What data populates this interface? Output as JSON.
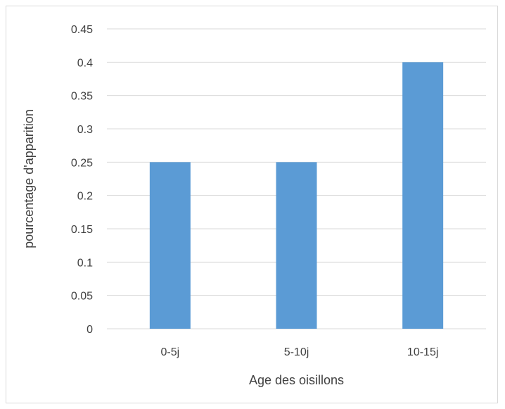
{
  "chart_data": {
    "type": "bar",
    "categories": [
      "0-5j",
      "5-10j",
      "10-15j"
    ],
    "values": [
      0.25,
      0.25,
      0.4
    ],
    "xlabel": "Age des oisillons",
    "ylabel": "pourcentage d'apparition",
    "ylim": [
      0,
      0.45
    ],
    "yticks": [
      "0",
      "0.05",
      "0.1",
      "0.15",
      "0.2",
      "0.25",
      "0.3",
      "0.35",
      "0.4",
      "0.45"
    ],
    "grid": true,
    "legend": "none",
    "bar_color": "#5b9bd5",
    "grid_color": "#d9d9d9",
    "text_color": "#404040"
  }
}
